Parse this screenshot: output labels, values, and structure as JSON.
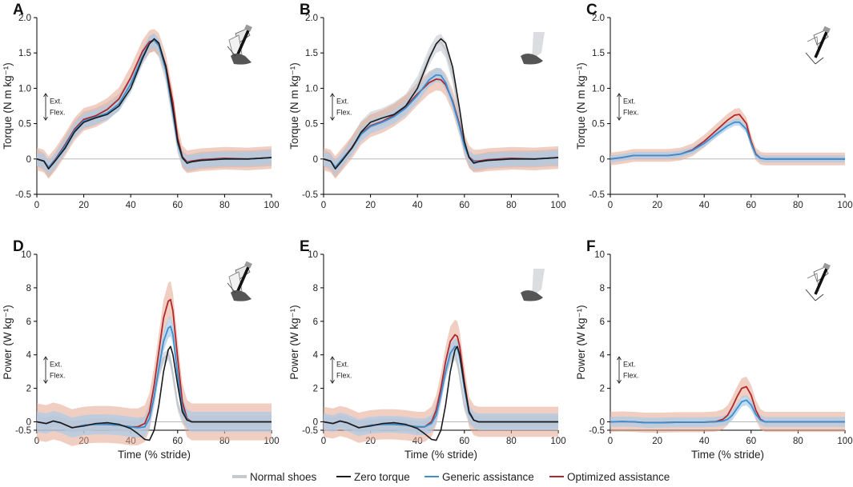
{
  "figure": {
    "legend": [
      {
        "label": "Normal shoes",
        "color": "#c5c9d0"
      },
      {
        "label": "Zero torque",
        "color": "#1a1a1a"
      },
      {
        "label": "Generic assistance",
        "color": "#3a8fd0"
      },
      {
        "label": "Optimized assistance",
        "color": "#b0282d"
      }
    ],
    "band_colors": {
      "normal": "#cfd3da",
      "generic": "#a9ccea",
      "optimized": "#e3a58f"
    },
    "direction_labels": {
      "up": "Ext.",
      "down": "Flex."
    }
  },
  "chart_data": [
    {
      "panel": "A",
      "type": "line",
      "illustration": "exo-with-shoe-icon",
      "xlabel": "",
      "ylabel": "Torque (N m kg⁻¹)",
      "xlim": [
        0,
        100
      ],
      "ylim": [
        -0.5,
        2.0
      ],
      "xticks": [
        0,
        20,
        40,
        60,
        80,
        100
      ],
      "yticks": [
        -0.5,
        0,
        0.5,
        1.0,
        1.5,
        2.0
      ],
      "ytick_labels": [
        "-0.5",
        "0",
        "0.5",
        "1.0",
        "1.5",
        "2.0"
      ],
      "x": [
        0,
        3,
        5,
        8,
        12,
        16,
        20,
        25,
        30,
        35,
        40,
        45,
        48,
        50,
        52,
        55,
        58,
        60,
        62,
        64,
        66,
        70,
        80,
        90,
        95,
        100
      ],
      "series": [
        {
          "name": "Normal shoes",
          "values": [
            0.02,
            -0.04,
            -0.15,
            -0.02,
            0.2,
            0.42,
            0.55,
            0.6,
            0.68,
            0.8,
            1.05,
            1.45,
            1.62,
            1.65,
            1.55,
            1.2,
            0.6,
            0.2,
            0.0,
            -0.06,
            -0.05,
            -0.02,
            0.0,
            0.0,
            0.01,
            0.02
          ],
          "band": 0.12
        },
        {
          "name": "Zero torque",
          "values": [
            0.0,
            -0.03,
            -0.14,
            -0.02,
            0.15,
            0.38,
            0.52,
            0.58,
            0.63,
            0.75,
            1.0,
            1.42,
            1.63,
            1.7,
            1.64,
            1.3,
            0.7,
            0.25,
            0.02,
            -0.06,
            -0.04,
            -0.02,
            0.0,
            0.0,
            0.01,
            0.02
          ],
          "band": 0
        },
        {
          "name": "Generic assistance",
          "values": [
            0.0,
            -0.03,
            -0.12,
            -0.01,
            0.18,
            0.4,
            0.54,
            0.59,
            0.65,
            0.78,
            1.06,
            1.45,
            1.64,
            1.68,
            1.6,
            1.25,
            0.65,
            0.22,
            0.01,
            -0.05,
            -0.04,
            -0.02,
            0.0,
            0.0,
            0.01,
            0.02
          ],
          "band": 0.1
        },
        {
          "name": "Optimized assistance",
          "values": [
            0.0,
            -0.03,
            -0.12,
            0.0,
            0.2,
            0.42,
            0.56,
            0.61,
            0.7,
            0.85,
            1.15,
            1.52,
            1.66,
            1.68,
            1.62,
            1.32,
            0.8,
            0.3,
            0.03,
            -0.04,
            -0.03,
            -0.01,
            0.01,
            0.0,
            0.01,
            0.02
          ],
          "band": 0.16
        }
      ]
    },
    {
      "panel": "B",
      "type": "line",
      "illustration": "shoe-only-icon",
      "xlabel": "",
      "ylabel": "Torque (N m kg⁻¹)",
      "xlim": [
        0,
        100
      ],
      "ylim": [
        -0.5,
        2.0
      ],
      "xticks": [
        0,
        20,
        40,
        60,
        80,
        100
      ],
      "yticks": [
        -0.5,
        0,
        0.5,
        1.0,
        1.5,
        2.0
      ],
      "ytick_labels": [
        "-0.5",
        "0",
        "0.5",
        "1.0",
        "1.5",
        "2.0"
      ],
      "x": [
        0,
        3,
        5,
        8,
        12,
        16,
        20,
        25,
        30,
        35,
        40,
        45,
        48,
        50,
        52,
        55,
        58,
        60,
        62,
        64,
        66,
        70,
        80,
        90,
        95,
        100
      ],
      "series": [
        {
          "name": "Normal shoes",
          "values": [
            0.02,
            -0.04,
            -0.15,
            -0.02,
            0.2,
            0.42,
            0.55,
            0.6,
            0.68,
            0.8,
            1.05,
            1.45,
            1.62,
            1.65,
            1.55,
            1.2,
            0.6,
            0.2,
            0.0,
            -0.06,
            -0.05,
            -0.02,
            0.0,
            0.0,
            0.01,
            0.02
          ],
          "band": 0.12
        },
        {
          "name": "Zero torque",
          "values": [
            0.0,
            -0.03,
            -0.14,
            -0.02,
            0.15,
            0.38,
            0.52,
            0.58,
            0.63,
            0.75,
            1.0,
            1.42,
            1.63,
            1.7,
            1.64,
            1.3,
            0.7,
            0.25,
            0.02,
            -0.06,
            -0.04,
            -0.02,
            0.0,
            0.0,
            0.01,
            0.02
          ],
          "band": 0
        },
        {
          "name": "Generic assistance",
          "values": [
            0.0,
            -0.03,
            -0.12,
            0.0,
            0.15,
            0.35,
            0.46,
            0.52,
            0.6,
            0.72,
            0.9,
            1.12,
            1.19,
            1.18,
            1.08,
            0.8,
            0.45,
            0.18,
            0.02,
            -0.04,
            -0.04,
            -0.02,
            0.0,
            0.0,
            0.01,
            0.02
          ],
          "band": 0.1
        },
        {
          "name": "Optimized assistance",
          "values": [
            0.0,
            -0.03,
            -0.12,
            0.0,
            0.16,
            0.36,
            0.47,
            0.53,
            0.62,
            0.74,
            0.92,
            1.08,
            1.13,
            1.12,
            1.05,
            0.82,
            0.48,
            0.2,
            0.03,
            -0.03,
            -0.03,
            -0.01,
            0.01,
            0.0,
            0.01,
            0.02
          ],
          "band": 0.16
        }
      ]
    },
    {
      "panel": "C",
      "type": "line",
      "illustration": "exo-only-icon",
      "xlabel": "",
      "ylabel": "Torque (N m kg⁻¹)",
      "xlim": [
        0,
        100
      ],
      "ylim": [
        -0.5,
        2.0
      ],
      "xticks": [
        0,
        20,
        40,
        60,
        80,
        100
      ],
      "yticks": [
        -0.5,
        0,
        0.5,
        1.0,
        1.5,
        2.0
      ],
      "ytick_labels": [
        "-0.5",
        "0",
        "0.5",
        "1.0",
        "1.5",
        "2.0"
      ],
      "x": [
        0,
        5,
        10,
        15,
        20,
        25,
        30,
        35,
        40,
        45,
        50,
        53,
        55,
        58,
        60,
        62,
        64,
        66,
        70,
        80,
        90,
        100
      ],
      "series": [
        {
          "name": "Generic assistance",
          "values": [
            0.0,
            0.02,
            0.05,
            0.05,
            0.05,
            0.05,
            0.07,
            0.12,
            0.22,
            0.35,
            0.47,
            0.52,
            0.52,
            0.42,
            0.22,
            0.06,
            0.01,
            0.0,
            0.0,
            0.0,
            0.0,
            0.0
          ],
          "band": 0.05
        },
        {
          "name": "Optimized assistance",
          "values": [
            0.0,
            0.02,
            0.05,
            0.05,
            0.05,
            0.05,
            0.07,
            0.13,
            0.25,
            0.4,
            0.55,
            0.62,
            0.63,
            0.5,
            0.25,
            0.07,
            0.01,
            0.0,
            0.0,
            0.0,
            0.0,
            0.0
          ],
          "band": 0.09
        }
      ]
    },
    {
      "panel": "D",
      "type": "line",
      "illustration": "exo-with-shoe-icon",
      "xlabel": "Time (% stride)",
      "ylabel": "Power (W kg⁻¹)",
      "xlim": [
        0,
        100
      ],
      "ylim": [
        -0.5,
        10
      ],
      "xticks": [
        0,
        20,
        40,
        60,
        80,
        100
      ],
      "yticks": [
        -0.5,
        0,
        2,
        4,
        6,
        8,
        10
      ],
      "ytick_labels": [
        "-0.5",
        "0",
        "2",
        "4",
        "6",
        "8",
        "10"
      ],
      "x": [
        0,
        4,
        7,
        10,
        15,
        20,
        25,
        30,
        35,
        40,
        43,
        46,
        48,
        50,
        52,
        54,
        56,
        57,
        58,
        60,
        62,
        64,
        66,
        70,
        80,
        100
      ],
      "series": [
        {
          "name": "Normal shoes",
          "values": [
            0.0,
            -0.1,
            0.05,
            -0.05,
            -0.3,
            -0.2,
            -0.15,
            -0.15,
            -0.2,
            -0.3,
            -0.3,
            0.0,
            0.8,
            1.8,
            2.9,
            3.8,
            4.0,
            3.6,
            2.8,
            1.0,
            0.2,
            0.05,
            0.0,
            0.0,
            0.0,
            0.0
          ],
          "band": 0.35
        },
        {
          "name": "Zero torque",
          "values": [
            0.0,
            -0.1,
            0.05,
            -0.05,
            -0.35,
            -0.25,
            -0.1,
            -0.05,
            -0.15,
            -0.4,
            -0.7,
            -1.05,
            -1.1,
            -0.5,
            1.0,
            3.0,
            4.3,
            4.5,
            4.0,
            2.2,
            0.6,
            0.1,
            0.0,
            0.0,
            0.0,
            0.0
          ],
          "band": 0
        },
        {
          "name": "Generic assistance",
          "values": [
            0.0,
            -0.1,
            0.05,
            -0.05,
            -0.35,
            -0.2,
            -0.15,
            -0.15,
            -0.2,
            -0.3,
            -0.35,
            -0.3,
            0.2,
            1.5,
            3.2,
            4.8,
            5.6,
            5.7,
            5.2,
            2.8,
            0.8,
            0.15,
            0.0,
            0.0,
            0.0,
            0.0
          ],
          "band": 0.6
        },
        {
          "name": "Optimized assistance",
          "values": [
            0.0,
            -0.1,
            0.05,
            -0.05,
            -0.35,
            -0.2,
            -0.15,
            -0.15,
            -0.2,
            -0.3,
            -0.3,
            -0.1,
            0.6,
            2.2,
            4.2,
            6.2,
            7.2,
            7.3,
            6.6,
            3.8,
            1.2,
            0.2,
            0.0,
            0.0,
            0.0,
            0.0
          ],
          "band": 1.1
        }
      ]
    },
    {
      "panel": "E",
      "type": "line",
      "illustration": "shoe-only-icon",
      "xlabel": "Time (% stride)",
      "ylabel": "Power (W kg⁻¹)",
      "xlim": [
        0,
        100
      ],
      "ylim": [
        -0.5,
        10
      ],
      "xticks": [
        0,
        20,
        40,
        60,
        80,
        100
      ],
      "yticks": [
        -0.5,
        0,
        2,
        4,
        6,
        8,
        10
      ],
      "ytick_labels": [
        "-0.5",
        "0",
        "2",
        "4",
        "6",
        "8",
        "10"
      ],
      "x": [
        0,
        4,
        7,
        10,
        15,
        20,
        25,
        30,
        35,
        40,
        43,
        46,
        48,
        50,
        52,
        54,
        56,
        57,
        58,
        60,
        62,
        64,
        66,
        70,
        80,
        100
      ],
      "series": [
        {
          "name": "Normal shoes",
          "values": [
            0.0,
            -0.1,
            0.05,
            -0.05,
            -0.3,
            -0.2,
            -0.15,
            -0.15,
            -0.2,
            -0.3,
            -0.3,
            0.0,
            0.8,
            1.8,
            2.9,
            3.8,
            4.0,
            3.6,
            2.8,
            1.0,
            0.2,
            0.05,
            0.0,
            0.0,
            0.0,
            0.0
          ],
          "band": 0.35
        },
        {
          "name": "Zero torque",
          "values": [
            0.0,
            -0.1,
            0.05,
            -0.05,
            -0.35,
            -0.25,
            -0.1,
            -0.05,
            -0.15,
            -0.4,
            -0.7,
            -1.05,
            -1.1,
            -0.5,
            1.0,
            3.0,
            4.3,
            4.5,
            4.0,
            2.2,
            0.6,
            0.1,
            0.0,
            0.0,
            0.0,
            0.0
          ],
          "band": 0
        },
        {
          "name": "Generic assistance",
          "values": [
            0.0,
            -0.1,
            0.05,
            -0.05,
            -0.35,
            -0.2,
            -0.15,
            -0.15,
            -0.2,
            -0.3,
            -0.3,
            -0.1,
            0.4,
            1.6,
            3.0,
            4.1,
            4.5,
            4.4,
            3.9,
            2.0,
            0.5,
            0.1,
            0.0,
            0.0,
            0.0,
            0.0
          ],
          "band": 0.5
        },
        {
          "name": "Optimized assistance",
          "values": [
            0.0,
            -0.1,
            0.05,
            -0.05,
            -0.35,
            -0.2,
            -0.15,
            -0.15,
            -0.2,
            -0.3,
            -0.3,
            0.0,
            0.7,
            2.0,
            3.6,
            4.8,
            5.2,
            5.1,
            4.5,
            2.4,
            0.6,
            0.1,
            0.0,
            0.0,
            0.0,
            0.0
          ],
          "band": 0.9
        }
      ]
    },
    {
      "panel": "F",
      "type": "line",
      "illustration": "exo-only-icon",
      "xlabel": "Time (% stride)",
      "ylabel": "Power (W kg⁻¹)",
      "xlim": [
        0,
        100
      ],
      "ylim": [
        -0.5,
        10
      ],
      "xticks": [
        0,
        20,
        40,
        60,
        80,
        100
      ],
      "yticks": [
        -0.5,
        0,
        2,
        4,
        6,
        8,
        10
      ],
      "ytick_labels": [
        "-0.5",
        "0",
        "2",
        "4",
        "6",
        "8",
        "10"
      ],
      "x": [
        0,
        5,
        10,
        15,
        20,
        30,
        40,
        45,
        48,
        50,
        52,
        54,
        56,
        58,
        60,
        62,
        64,
        66,
        70,
        80,
        100
      ],
      "series": [
        {
          "name": "Generic assistance",
          "values": [
            0.0,
            0.02,
            0.0,
            -0.05,
            -0.05,
            -0.02,
            -0.02,
            0.0,
            0.05,
            0.15,
            0.4,
            0.8,
            1.2,
            1.3,
            1.0,
            0.45,
            0.1,
            0.0,
            0.0,
            0.0,
            0.0
          ],
          "band": 0.3
        },
        {
          "name": "Optimized assistance",
          "values": [
            0.0,
            0.02,
            0.0,
            -0.05,
            -0.05,
            -0.02,
            -0.02,
            0.02,
            0.15,
            0.4,
            0.9,
            1.5,
            2.0,
            2.1,
            1.6,
            0.7,
            0.15,
            0.0,
            0.0,
            0.0,
            0.0
          ],
          "band": 0.6
        }
      ]
    }
  ]
}
